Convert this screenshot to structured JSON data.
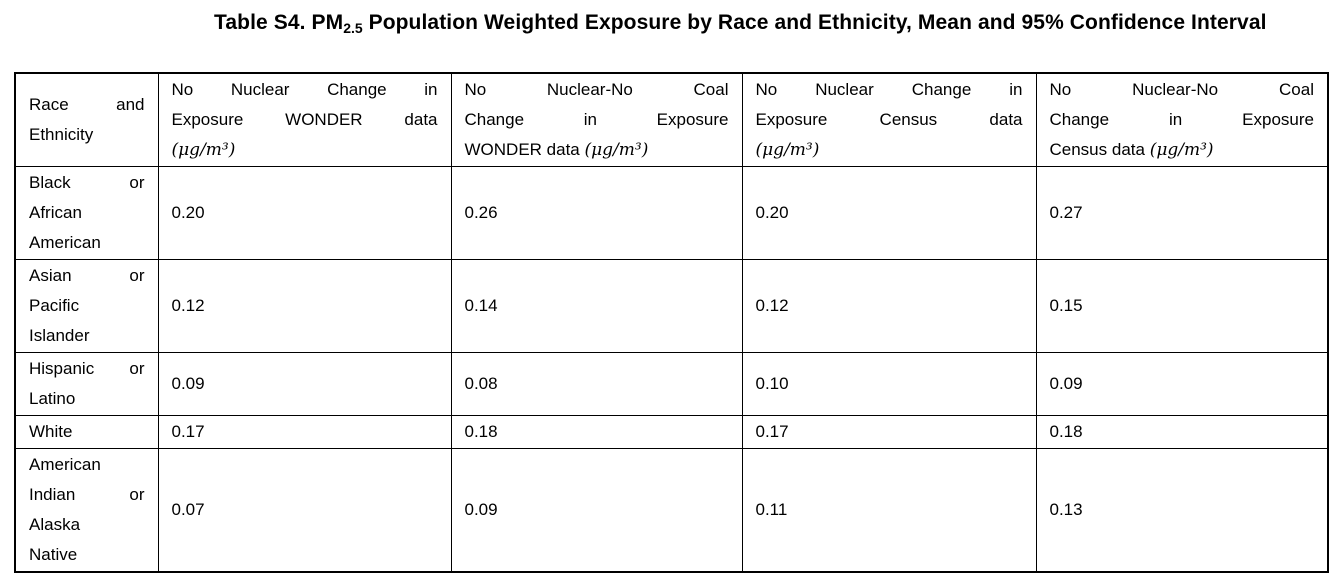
{
  "title": {
    "prefix": "Table S4. PM",
    "subscript": "2.5",
    "suffix": " Population Weighted Exposure by Race and Ethnicity, Mean and 95% Confidence Interval"
  },
  "units_token": "(μg/m³)",
  "table": {
    "header": {
      "race_col": [
        "Race and",
        "Ethnicity"
      ],
      "cols": [
        [
          "No Nuclear Change in",
          "Exposure WONDER data",
          "(μg/m³)"
        ],
        [
          "No Nuclear-No Coal",
          "Change in Exposure",
          "WONDER data (μg/m³)"
        ],
        [
          "No Nuclear Change in",
          "Exposure Census data",
          "(μg/m³)"
        ],
        [
          "No Nuclear-No Coal",
          "Change in Exposure",
          "Census data (μg/m³)"
        ]
      ]
    },
    "rows": [
      {
        "race": [
          "Black or",
          "African",
          "American"
        ],
        "values": [
          "0.20",
          "0.26",
          "0.20",
          "0.27"
        ]
      },
      {
        "race": [
          "Asian or",
          "Pacific",
          "Islander"
        ],
        "values": [
          "0.12",
          "0.14",
          "0.12",
          "0.15"
        ]
      },
      {
        "race": [
          "Hispanic or",
          "Latino"
        ],
        "values": [
          "0.09",
          "0.08",
          "0.10",
          "0.09"
        ]
      },
      {
        "race": [
          "White"
        ],
        "values": [
          "0.17",
          "0.18",
          "0.17",
          "0.18"
        ]
      },
      {
        "race": [
          "American",
          "Indian or",
          "Alaska",
          "Native"
        ],
        "values": [
          "0.07",
          "0.09",
          "0.11",
          "0.13"
        ]
      }
    ]
  }
}
